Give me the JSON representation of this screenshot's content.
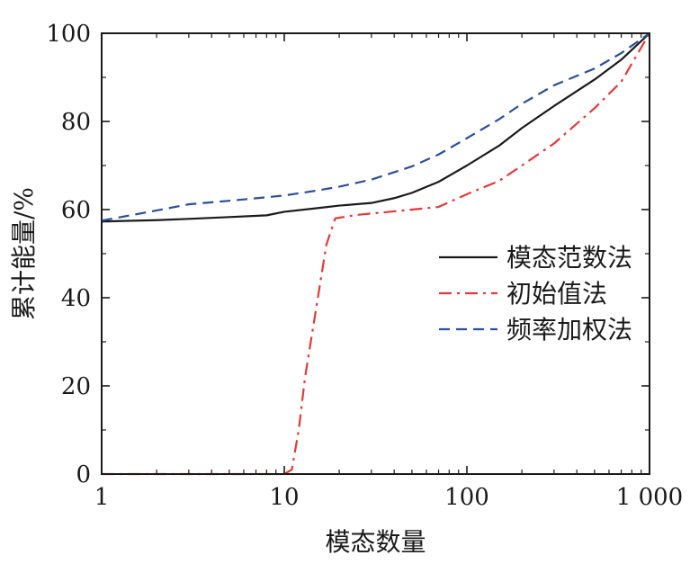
{
  "chart_data": {
    "type": "line",
    "title": "",
    "xlabel": "模态数量",
    "ylabel": "累计能量/%",
    "xscale": "log",
    "xlim": [
      1,
      1000
    ],
    "ylim": [
      0,
      100
    ],
    "x_ticks": [
      1,
      10,
      100,
      1000
    ],
    "x_tick_labels": [
      "1",
      "10",
      "100",
      "1 000"
    ],
    "y_ticks": [
      0,
      20,
      40,
      60,
      80,
      100
    ],
    "y_tick_labels": [
      "0",
      "20",
      "40",
      "60",
      "80",
      "100"
    ],
    "grid": false,
    "legend_position": "right",
    "series": [
      {
        "name": "模态范数法",
        "color": "#1a1a1a",
        "dash": "solid",
        "points": [
          [
            1,
            57.3
          ],
          [
            2,
            57.6
          ],
          [
            3,
            57.9
          ],
          [
            5,
            58.3
          ],
          [
            8,
            58.7
          ],
          [
            10,
            59.5
          ],
          [
            15,
            60.3
          ],
          [
            20,
            60.9
          ],
          [
            30,
            61.5
          ],
          [
            40,
            62.6
          ],
          [
            50,
            63.8
          ],
          [
            70,
            66.3
          ],
          [
            100,
            70.0
          ],
          [
            150,
            74.5
          ],
          [
            200,
            78.5
          ],
          [
            300,
            83.5
          ],
          [
            500,
            89.5
          ],
          [
            700,
            94.0
          ],
          [
            1000,
            100
          ]
        ]
      },
      {
        "name": "初始值法",
        "color": "#e03a3a",
        "dash": "dashdot",
        "points": [
          [
            1,
            0
          ],
          [
            5,
            0
          ],
          [
            10,
            0
          ],
          [
            11,
            1
          ],
          [
            12,
            10
          ],
          [
            13,
            22
          ],
          [
            15,
            38
          ],
          [
            17,
            52
          ],
          [
            19,
            58
          ],
          [
            25,
            58.8
          ],
          [
            40,
            59.6
          ],
          [
            70,
            60.6
          ],
          [
            100,
            63.5
          ],
          [
            150,
            66.5
          ],
          [
            200,
            70
          ],
          [
            300,
            75
          ],
          [
            500,
            83
          ],
          [
            700,
            89
          ],
          [
            1000,
            100
          ]
        ]
      },
      {
        "name": "频率加权法",
        "color": "#2c4f9a",
        "dash": "dashed",
        "points": [
          [
            1,
            57.5
          ],
          [
            2,
            59.8
          ],
          [
            3,
            61.2
          ],
          [
            5,
            62.0
          ],
          [
            8,
            62.8
          ],
          [
            10,
            63.2
          ],
          [
            15,
            64.3
          ],
          [
            20,
            65.2
          ],
          [
            30,
            66.8
          ],
          [
            50,
            69.8
          ],
          [
            70,
            72.5
          ],
          [
            100,
            76.2
          ],
          [
            150,
            80.5
          ],
          [
            200,
            84.0
          ],
          [
            300,
            88.2
          ],
          [
            500,
            92.0
          ],
          [
            700,
            95.5
          ],
          [
            1000,
            100
          ]
        ]
      }
    ]
  }
}
